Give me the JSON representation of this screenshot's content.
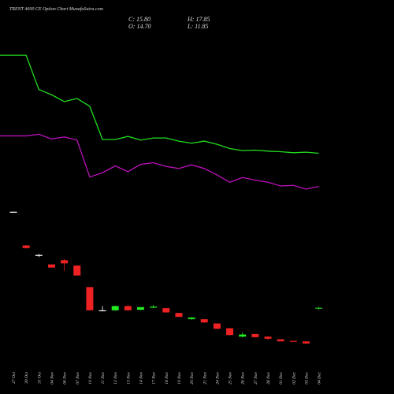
{
  "header": {
    "title": "TRENT 4600  CE Option  Chart MunafaSutra.com",
    "c": "C: 15.80",
    "o": "O: 14.70",
    "h": "H: 17.85",
    "l": "L: 11.85"
  },
  "chart_data": {
    "type": "candlestick",
    "x": [
      "27 Oct",
      "30 Oct",
      "31 Oct",
      "04 Nov",
      "06 Nov",
      "07 Nov",
      "10 Nov",
      "11 Nov",
      "12 Nov",
      "13 Nov",
      "14 Nov",
      "17 Nov",
      "18 Nov",
      "19 Nov",
      "20 Nov",
      "21 Nov",
      "24 Nov",
      "25 Nov",
      "26 Nov",
      "27 Nov",
      "28 Nov",
      "01 Dec",
      "02 Dec",
      "03 Dec",
      "04 Dec"
    ],
    "candles": [
      {
        "date": "04 Dec",
        "open": 14.7,
        "high": 17.85,
        "low": 11.85,
        "close": 15.8,
        "color": "#22cc22"
      },
      {
        "date": "27 Oct",
        "open": 198.0,
        "high": 198.0,
        "low": 197.0,
        "close": 197.0,
        "color": "#ffffff"
      },
      {
        "date": "30 Oct",
        "open": 134.0,
        "high": 135.0,
        "low": 128.0,
        "close": 129.0,
        "color": "#ee2222"
      },
      {
        "date": "31 Oct",
        "open": 114.0,
        "high": 118.0,
        "low": 112.0,
        "close": 116.0,
        "color": "#ffffff"
      },
      {
        "date": "04 Nov",
        "open": 98.0,
        "high": 98.0,
        "low": 92.0,
        "close": 92.0,
        "color": "#ee2222"
      },
      {
        "date": "06 Nov",
        "open": 106.0,
        "high": 108.0,
        "low": 86.0,
        "close": 100.0,
        "color": "#ee2222"
      },
      {
        "date": "07 Nov",
        "open": 96.0,
        "high": 96.0,
        "low": 77.0,
        "close": 77.0,
        "color": "#ee2222"
      },
      {
        "date": "10 Nov",
        "open": 55.0,
        "high": 55.0,
        "low": 11.0,
        "close": 11.0,
        "color": "#ee2222"
      },
      {
        "date": "11 Nov",
        "open": 10.0,
        "high": 19.0,
        "low": 9.0,
        "close": 11.0,
        "color": "#ffffff"
      },
      {
        "date": "12 Nov",
        "open": 11.0,
        "high": 20.0,
        "low": 10.0,
        "close": 19.0,
        "color": "#22ee22"
      },
      {
        "date": "13 Nov",
        "open": 19.0,
        "high": 21.0,
        "low": 10.0,
        "close": 11.0,
        "color": "#ee2222"
      },
      {
        "date": "14 Nov",
        "open": 12.0,
        "high": 17.0,
        "low": 11.0,
        "close": 17.0,
        "color": "#22ee22"
      },
      {
        "date": "17 Nov",
        "open": 16.0,
        "high": 21.0,
        "low": 15.0,
        "close": 18.0,
        "color": "#22ee22"
      },
      {
        "date": "18 Nov",
        "open": 15.0,
        "high": 15.0,
        "low": 6.0,
        "close": 7.0,
        "color": "#ee2222"
      },
      {
        "date": "19 Nov",
        "open": 6.0,
        "high": 6.0,
        "low": -2.0,
        "close": -1.5,
        "color": "#ee2222"
      },
      {
        "date": "20 Nov",
        "open": -2.5,
        "high": -1.5,
        "low": -7.0,
        "close": -6.0,
        "color": "#22cc22"
      },
      {
        "date": "21 Nov",
        "open": -6.0,
        "high": -6.0,
        "low": -13.0,
        "close": -12.0,
        "color": "#ee2222"
      },
      {
        "date": "24 Nov",
        "open": -14.0,
        "high": -14.0,
        "low": -25.0,
        "close": -24.0,
        "color": "#ee2222"
      },
      {
        "date": "25 Nov",
        "open": -23.0,
        "high": -23.0,
        "low": -37.0,
        "close": -36.0,
        "color": "#ee2222"
      },
      {
        "date": "26 Nov",
        "open": -39.0,
        "high": -31.0,
        "low": -40.0,
        "close": -35.0,
        "color": "#22ee22"
      },
      {
        "date": "27 Nov",
        "open": -34.0,
        "high": -34.0,
        "low": -41.0,
        "close": -40.0,
        "color": "#ee2222"
      },
      {
        "date": "28 Nov",
        "open": -39.0,
        "high": -38.0,
        "low": -45.0,
        "close": -43.0,
        "color": "#ee2222"
      },
      {
        "date": "01 Dec",
        "open": -44.0,
        "high": -44.0,
        "low": -48.0,
        "close": -48.0,
        "color": "#ee2222"
      },
      {
        "date": "02 Dec",
        "open": -47.0,
        "high": -47.0,
        "low": -49.0,
        "close": -48.5,
        "color": "#ee2222"
      },
      {
        "date": "03 Dec",
        "open": -48.0,
        "high": -48.0,
        "low": -53.0,
        "close": -52.0,
        "color": "#ee2222"
      }
    ],
    "series": [
      {
        "color": "#22dd22",
        "values": [
          495,
          495,
          430,
          420,
          407,
          413,
          398,
          335,
          335,
          341,
          334,
          338,
          338,
          332,
          328,
          332,
          326,
          318,
          314,
          315,
          313,
          312,
          310,
          311,
          309
        ]
      },
      {
        "color": "#bb11bb",
        "values": [
          342,
          342,
          345,
          336,
          340,
          334,
          264,
          272,
          285,
          274,
          288,
          291,
          284,
          280,
          287,
          280,
          268,
          254,
          263,
          258,
          254,
          247,
          248,
          241,
          246
        ]
      }
    ],
    "ylim": [
      -100,
      540
    ]
  }
}
